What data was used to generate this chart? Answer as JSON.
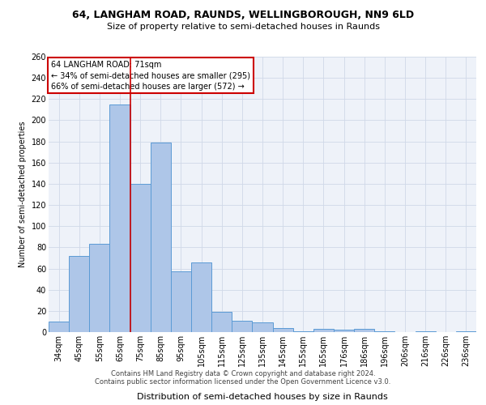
{
  "title1": "64, LANGHAM ROAD, RAUNDS, WELLINGBOROUGH, NN9 6LD",
  "title2": "Size of property relative to semi-detached houses in Raunds",
  "xlabel": "Distribution of semi-detached houses by size in Raunds",
  "ylabel": "Number of semi-detached properties",
  "footer1": "Contains HM Land Registry data © Crown copyright and database right 2024.",
  "footer2": "Contains public sector information licensed under the Open Government Licence v3.0.",
  "annotation_title": "64 LANGHAM ROAD: 71sqm",
  "annotation_line1": "← 34% of semi-detached houses are smaller (295)",
  "annotation_line2": "66% of semi-detached houses are larger (572) →",
  "bar_color": "#aec6e8",
  "bar_edge_color": "#5b9bd5",
  "vline_color": "#cc0000",
  "annotation_box_color": "#cc0000",
  "grid_color": "#d0d8e8",
  "bg_color": "#eef2f9",
  "categories": [
    "34sqm",
    "45sqm",
    "55sqm",
    "65sqm",
    "75sqm",
    "85sqm",
    "95sqm",
    "105sqm",
    "115sqm",
    "125sqm",
    "135sqm",
    "145sqm",
    "155sqm",
    "165sqm",
    "176sqm",
    "186sqm",
    "196sqm",
    "206sqm",
    "216sqm",
    "226sqm",
    "236sqm"
  ],
  "values": [
    10,
    72,
    83,
    215,
    140,
    179,
    57,
    66,
    19,
    11,
    9,
    4,
    1,
    3,
    2,
    3,
    1,
    0,
    1,
    0,
    1
  ],
  "vline_x": 3.5,
  "ylim": [
    0,
    260
  ],
  "yticks": [
    0,
    20,
    40,
    60,
    80,
    100,
    120,
    140,
    160,
    180,
    200,
    220,
    240,
    260
  ],
  "title1_fontsize": 9,
  "title2_fontsize": 8,
  "xlabel_fontsize": 8,
  "ylabel_fontsize": 7,
  "tick_fontsize": 7,
  "annotation_fontsize": 7,
  "footer_fontsize": 6
}
